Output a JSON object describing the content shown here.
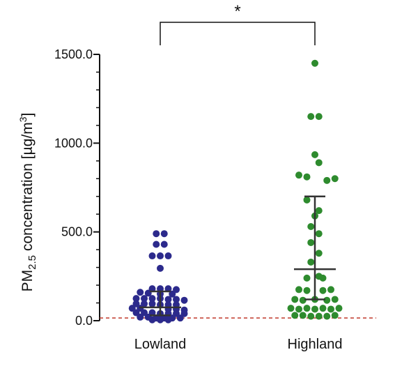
{
  "chart_data": {
    "type": "scatter",
    "subtype": "dot-plot with median and interquartile range",
    "title": "",
    "ylabel": {
      "main": "PM",
      "sub": "2.5",
      "rest": " concentration [µg/m",
      "sup": "3",
      "close": "]"
    },
    "xlabel": "",
    "categories": [
      "Lowland",
      "Highland"
    ],
    "ylim": [
      0,
      1500
    ],
    "yticks": [
      0,
      500,
      1000,
      1500
    ],
    "ytick_labels": [
      "0.0",
      "500.0",
      "1000.0",
      "1500.0"
    ],
    "minor_tick_step": 100,
    "reference_line": {
      "value": 15,
      "color": "#c0392b",
      "style": "dashed"
    },
    "significance": {
      "label": "*",
      "between": [
        "Lowland",
        "Highland"
      ]
    },
    "series": [
      {
        "name": "Lowland",
        "color": "#2c2a8c",
        "median": 75,
        "q1": 30,
        "q3": 165,
        "points": [
          {
            "y": 490,
            "slot": -0.5
          },
          {
            "y": 490,
            "slot": 0.5
          },
          {
            "y": 430,
            "slot": 0.5
          },
          {
            "y": 430,
            "slot": -0.5
          },
          {
            "y": 365,
            "slot": -1
          },
          {
            "y": 365,
            "slot": 0
          },
          {
            "y": 365,
            "slot": 1
          },
          {
            "y": 295,
            "slot": 0
          },
          {
            "y": 180,
            "slot": -1
          },
          {
            "y": 180,
            "slot": 0
          },
          {
            "y": 180,
            "slot": 1
          },
          {
            "y": 175,
            "slot": 2
          },
          {
            "y": 160,
            "slot": -2.5
          },
          {
            "y": 155,
            "slot": -1.5
          },
          {
            "y": 150,
            "slot": 0
          },
          {
            "y": 150,
            "slot": 1.5
          },
          {
            "y": 125,
            "slot": -3
          },
          {
            "y": 125,
            "slot": -2
          },
          {
            "y": 125,
            "slot": -1
          },
          {
            "y": 125,
            "slot": 0
          },
          {
            "y": 120,
            "slot": 1
          },
          {
            "y": 120,
            "slot": 2
          },
          {
            "y": 115,
            "slot": 3
          },
          {
            "y": 95,
            "slot": -3
          },
          {
            "y": 95,
            "slot": -2
          },
          {
            "y": 95,
            "slot": -1
          },
          {
            "y": 90,
            "slot": 0
          },
          {
            "y": 90,
            "slot": 1
          },
          {
            "y": 90,
            "slot": 2
          },
          {
            "y": 70,
            "slot": -3.5
          },
          {
            "y": 70,
            "slot": -2.5
          },
          {
            "y": 65,
            "slot": 1
          },
          {
            "y": 65,
            "slot": 2
          },
          {
            "y": 60,
            "slot": 3
          },
          {
            "y": 45,
            "slot": -3
          },
          {
            "y": 45,
            "slot": -2
          },
          {
            "y": 45,
            "slot": -1
          },
          {
            "y": 40,
            "slot": 0
          },
          {
            "y": 40,
            "slot": 1
          },
          {
            "y": 40,
            "slot": 2
          },
          {
            "y": 40,
            "slot": 3
          },
          {
            "y": 20,
            "slot": -2.5
          },
          {
            "y": 20,
            "slot": -1.5
          },
          {
            "y": 15,
            "slot": -0.5
          },
          {
            "y": 15,
            "slot": 0.5
          },
          {
            "y": 15,
            "slot": 1.5
          },
          {
            "y": 15,
            "slot": 2.5
          },
          {
            "y": 5,
            "slot": -1
          },
          {
            "y": 5,
            "slot": 0
          },
          {
            "y": 5,
            "slot": 1
          }
        ]
      },
      {
        "name": "Highland",
        "color": "#2e8b2e",
        "median": 290,
        "q1": 120,
        "q3": 700,
        "points": [
          {
            "y": 1450,
            "slot": 0
          },
          {
            "y": 1150,
            "slot": -0.5
          },
          {
            "y": 1150,
            "slot": 0.5
          },
          {
            "y": 935,
            "slot": 0
          },
          {
            "y": 890,
            "slot": 0.5
          },
          {
            "y": 820,
            "slot": -2
          },
          {
            "y": 810,
            "slot": -1
          },
          {
            "y": 790,
            "slot": 1.5
          },
          {
            "y": 800,
            "slot": 2.5
          },
          {
            "y": 680,
            "slot": -1
          },
          {
            "y": 620,
            "slot": 0.5
          },
          {
            "y": 590,
            "slot": 0
          },
          {
            "y": 530,
            "slot": -0.5
          },
          {
            "y": 490,
            "slot": 0.5
          },
          {
            "y": 440,
            "slot": -0.5
          },
          {
            "y": 380,
            "slot": 0.5
          },
          {
            "y": 330,
            "slot": -0.5
          },
          {
            "y": 250,
            "slot": 0.5
          },
          {
            "y": 240,
            "slot": -1
          },
          {
            "y": 240,
            "slot": 1
          },
          {
            "y": 175,
            "slot": -2
          },
          {
            "y": 170,
            "slot": -1
          },
          {
            "y": 170,
            "slot": 1
          },
          {
            "y": 175,
            "slot": 2
          },
          {
            "y": 120,
            "slot": -2.5
          },
          {
            "y": 115,
            "slot": -1.5
          },
          {
            "y": 120,
            "slot": 0
          },
          {
            "y": 115,
            "slot": 1.5
          },
          {
            "y": 120,
            "slot": 2.5
          },
          {
            "y": 70,
            "slot": -3
          },
          {
            "y": 65,
            "slot": -2
          },
          {
            "y": 70,
            "slot": -1
          },
          {
            "y": 65,
            "slot": 0
          },
          {
            "y": 70,
            "slot": 1
          },
          {
            "y": 65,
            "slot": 2
          },
          {
            "y": 70,
            "slot": 3
          },
          {
            "y": 30,
            "slot": -2.5
          },
          {
            "y": 30,
            "slot": -1.5
          },
          {
            "y": 25,
            "slot": -0.5
          },
          {
            "y": 25,
            "slot": 0.5
          },
          {
            "y": 25,
            "slot": 1.5
          },
          {
            "y": 30,
            "slot": 2.5
          }
        ]
      }
    ]
  }
}
